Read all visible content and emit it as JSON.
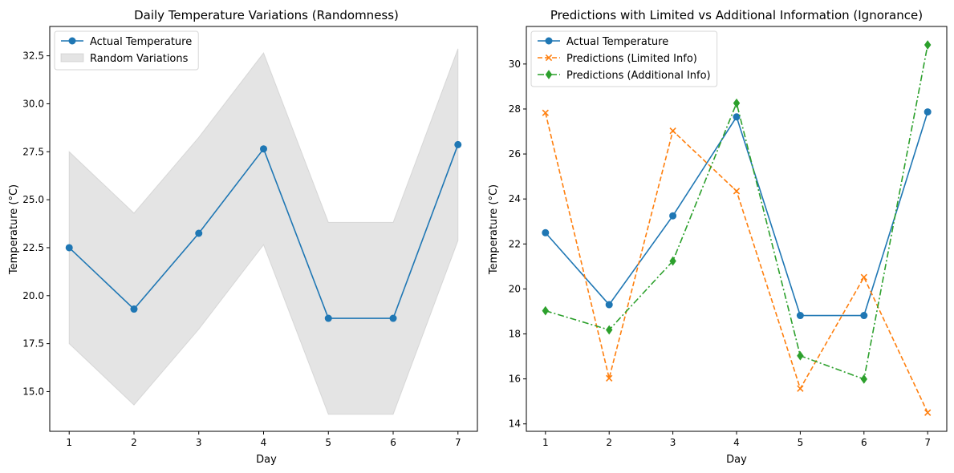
{
  "chart_data": [
    {
      "type": "line",
      "title": "Daily Temperature Variations (Randomness)",
      "xlabel": "Day",
      "ylabel": "Temperature (°C)",
      "x": [
        1,
        2,
        3,
        4,
        5,
        6,
        7
      ],
      "xticks": [
        1,
        2,
        3,
        4,
        5,
        6,
        7
      ],
      "yticks": [
        15.0,
        17.5,
        20.0,
        22.5,
        25.0,
        27.5,
        30.0,
        32.5
      ],
      "ytick_decimals": 1,
      "xlim": [
        0.7,
        7.3
      ],
      "ylim": [
        12.93,
        34.03
      ],
      "grid": false,
      "legend_position": "top-left",
      "series": [
        {
          "name": "Actual Temperature",
          "kind": "line",
          "marker": "circle",
          "dash": "solid",
          "color": "#1f77b4",
          "values": [
            22.5,
            19.3,
            23.25,
            27.65,
            18.82,
            18.82,
            27.87
          ]
        }
      ],
      "band": {
        "name": "Random Variations",
        "color": "#bfbfbf",
        "opacity": 0.42,
        "lower": [
          17.5,
          14.3,
          18.25,
          22.65,
          13.82,
          13.82,
          22.87
        ],
        "upper": [
          27.5,
          24.3,
          28.25,
          32.65,
          23.82,
          23.82,
          32.87
        ]
      }
    },
    {
      "type": "line",
      "title": "Predictions with Limited vs Additional Information (Ignorance)",
      "xlabel": "Day",
      "ylabel": "Temperature (°C)",
      "x": [
        1,
        2,
        3,
        4,
        5,
        6,
        7
      ],
      "xticks": [
        1,
        2,
        3,
        4,
        5,
        6,
        7
      ],
      "yticks": [
        14,
        16,
        18,
        20,
        22,
        24,
        26,
        28,
        30
      ],
      "ytick_decimals": 0,
      "xlim": [
        0.7,
        7.3
      ],
      "ylim": [
        13.67,
        31.67
      ],
      "grid": false,
      "legend_position": "top-left",
      "series": [
        {
          "name": "Actual Temperature",
          "kind": "line",
          "marker": "circle",
          "dash": "solid",
          "color": "#1f77b4",
          "values": [
            22.5,
            19.3,
            23.25,
            27.65,
            18.82,
            18.82,
            27.87
          ]
        },
        {
          "name": "Predictions (Limited Info)",
          "kind": "line",
          "marker": "x",
          "dash": "dashed",
          "color": "#ff7f0e",
          "values": [
            27.83,
            16.03,
            27.03,
            24.35,
            15.57,
            20.52,
            14.5
          ]
        },
        {
          "name": "Predictions (Additional Info)",
          "kind": "line",
          "marker": "diamond",
          "dash": "dashdot",
          "color": "#2ca02c",
          "values": [
            19.03,
            18.18,
            21.24,
            28.26,
            17.03,
            15.99,
            30.85
          ]
        }
      ]
    }
  ]
}
